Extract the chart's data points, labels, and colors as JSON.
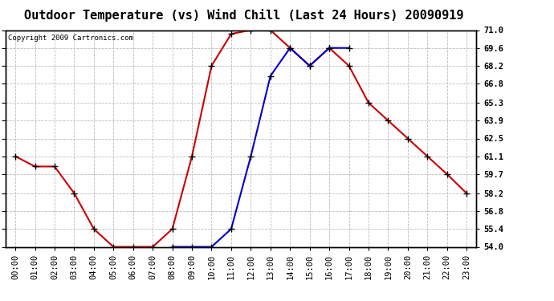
{
  "title": "Outdoor Temperature (vs) Wind Chill (Last 24 Hours) 20090919",
  "copyright": "Copyright 2009 Cartronics.com",
  "hours": [
    0,
    1,
    2,
    3,
    4,
    5,
    6,
    7,
    8,
    9,
    10,
    11,
    12,
    13,
    14,
    15,
    16,
    17,
    18,
    19,
    20,
    21,
    22,
    23
  ],
  "temp": [
    61.1,
    60.3,
    60.3,
    58.2,
    55.4,
    54.0,
    54.0,
    54.0,
    55.4,
    61.1,
    68.2,
    70.7,
    71.0,
    71.0,
    69.6,
    68.2,
    69.6,
    68.2,
    65.3,
    63.9,
    62.5,
    61.1,
    59.7,
    58.2
  ],
  "windchill": [
    null,
    null,
    null,
    null,
    null,
    null,
    null,
    null,
    54.0,
    54.0,
    54.0,
    55.4,
    61.1,
    67.4,
    69.6,
    68.2,
    69.6,
    69.6,
    null,
    null,
    null,
    null,
    null,
    null
  ],
  "temp_color": "#cc0000",
  "windchill_color": "#0000cc",
  "background_color": "#ffffff",
  "grid_color": "#bbbbbb",
  "ylim": [
    54.0,
    71.0
  ],
  "yticks": [
    54.0,
    55.4,
    56.8,
    58.2,
    59.7,
    61.1,
    62.5,
    63.9,
    65.3,
    66.8,
    68.2,
    69.6,
    71.0
  ],
  "marker": "+",
  "marker_size": 6,
  "linewidth": 1.5,
  "title_fontsize": 11,
  "tick_fontsize": 7.5,
  "copyright_fontsize": 6.5
}
